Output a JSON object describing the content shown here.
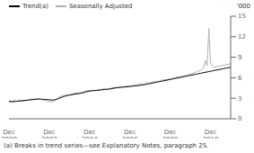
{
  "chart_data": {
    "type": "line",
    "ylabel": "'000",
    "annotations": [
      "(a) Breaks in trend series—see Explanatory Notes, paragraph 25."
    ],
    "legend": "top-left",
    "grid": false,
    "ylim": [
      0,
      15
    ],
    "yticks": [
      0,
      3,
      6,
      9,
      12,
      15
    ],
    "categories": [
      "Dec\n2000",
      null,
      null,
      null,
      null,
      null,
      null,
      null,
      null,
      null,
      null,
      null,
      null,
      null,
      null,
      null,
      null,
      null,
      null,
      null,
      null,
      null,
      null,
      null,
      "Dec\n2002",
      null,
      null,
      null,
      null,
      null,
      null,
      null,
      null,
      null,
      null,
      null,
      null,
      null,
      null,
      null,
      null,
      null,
      null,
      null,
      null,
      null,
      null,
      null,
      "Dec\n2004",
      null,
      null,
      null,
      null,
      null,
      null,
      null,
      null,
      null,
      null,
      null,
      null,
      null,
      null,
      null,
      null,
      null,
      null,
      null,
      null,
      null,
      null,
      null,
      "Dec\n2006",
      null,
      null,
      null,
      null,
      null,
      null,
      null,
      null,
      null,
      null,
      null,
      null,
      null,
      null,
      null,
      null,
      null,
      null,
      null,
      null,
      null,
      null,
      null,
      "Dec\n2008",
      null,
      null,
      null,
      null,
      null,
      null,
      null,
      null,
      null,
      null,
      null,
      null,
      null,
      null,
      null,
      null,
      null,
      null,
      null,
      null,
      null,
      null,
      null,
      "Dec\n2010",
      null,
      null,
      null,
      null,
      null,
      null,
      null,
      null,
      null,
      null,
      null,
      null
    ],
    "series": [
      {
        "name": "Trend(a)",
        "color": "#000000",
        "values": [
          2.6,
          2.55,
          2.5,
          2.52,
          2.55,
          2.58,
          2.6,
          2.62,
          2.65,
          2.68,
          2.7,
          2.72,
          2.75,
          2.78,
          2.8,
          2.82,
          2.85,
          2.88,
          2.9,
          2.88,
          2.86,
          2.84,
          2.82,
          2.8,
          2.78,
          2.76,
          2.74,
          2.76,
          2.82,
          2.9,
          3.0,
          3.1,
          3.2,
          3.28,
          3.35,
          3.4,
          3.45,
          3.5,
          3.55,
          3.6,
          3.65,
          3.68,
          3.7,
          3.75,
          3.8,
          3.88,
          3.95,
          4.0,
          4.05,
          4.08,
          4.1,
          4.13,
          4.15,
          4.18,
          4.2,
          4.22,
          4.25,
          4.28,
          4.3,
          4.32,
          4.35,
          4.4,
          4.45,
          4.5,
          4.52,
          4.55,
          4.58,
          4.6,
          4.63,
          4.65,
          4.68,
          4.7,
          4.72,
          4.75,
          4.78,
          4.8,
          4.83,
          4.86,
          4.9,
          4.93,
          4.96,
          5.0,
          5.05,
          5.1,
          5.15,
          5.2,
          5.25,
          5.3,
          5.35,
          5.4,
          5.45,
          5.5,
          5.55,
          5.6,
          5.65,
          5.7,
          5.75,
          5.8,
          5.85,
          5.9,
          5.95,
          6.0,
          6.05,
          6.1,
          6.15,
          6.2,
          6.25,
          6.3,
          6.35,
          6.4,
          6.45,
          6.5,
          6.55,
          6.6,
          6.65,
          6.7,
          6.75,
          6.8,
          6.85,
          6.9,
          6.95,
          7.0,
          7.05,
          7.1,
          7.15,
          7.2,
          7.25,
          7.3,
          7.35,
          7.4,
          7.45,
          7.5,
          7.55
        ]
      },
      {
        "name": "Seasonally Adjusted",
        "color": "#b0b0b0",
        "values": [
          2.3,
          2.5,
          2.4,
          2.8,
          2.5,
          2.6,
          2.7,
          2.6,
          2.5,
          2.7,
          2.6,
          2.8,
          2.7,
          2.9,
          2.85,
          2.95,
          2.85,
          3.0,
          2.9,
          2.8,
          2.75,
          2.7,
          2.65,
          2.6,
          2.55,
          2.5,
          2.45,
          2.6,
          2.9,
          3.1,
          3.2,
          3.3,
          3.4,
          3.5,
          3.45,
          3.55,
          3.5,
          3.6,
          3.65,
          3.7,
          3.75,
          3.7,
          3.8,
          3.85,
          3.9,
          4.0,
          4.1,
          4.2,
          4.1,
          4.15,
          4.2,
          4.1,
          4.15,
          4.2,
          4.25,
          4.3,
          4.35,
          4.4,
          4.45,
          4.3,
          4.4,
          4.5,
          4.55,
          4.6,
          4.55,
          4.65,
          4.6,
          4.7,
          4.65,
          4.75,
          4.8,
          4.75,
          4.8,
          4.85,
          4.9,
          4.95,
          5.0,
          4.95,
          5.1,
          5.15,
          5.05,
          5.2,
          5.25,
          5.3,
          5.2,
          5.35,
          5.4,
          5.45,
          5.5,
          5.45,
          5.6,
          5.65,
          5.7,
          5.75,
          5.7,
          5.8,
          5.85,
          5.9,
          5.95,
          6.0,
          6.05,
          6.1,
          6.15,
          6.2,
          6.3,
          6.35,
          6.4,
          6.5,
          6.55,
          6.6,
          6.7,
          6.8,
          6.9,
          7.0,
          7.1,
          7.3,
          7.5,
          8.5,
          7.8,
          13.2,
          8.2,
          7.8,
          7.5,
          7.6,
          7.65,
          7.7,
          7.75,
          7.8,
          7.85,
          7.9,
          7.95,
          8.0,
          8.05
        ]
      }
    ]
  }
}
